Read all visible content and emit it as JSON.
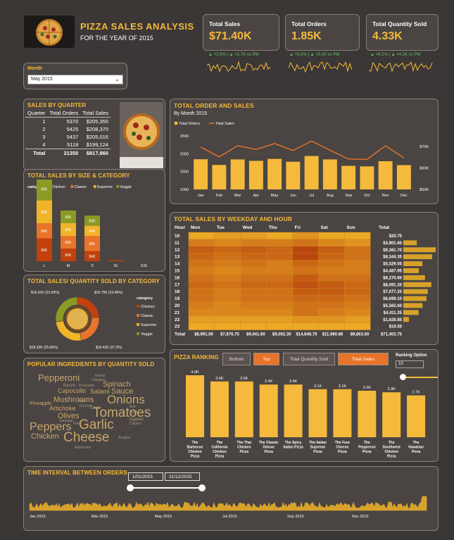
{
  "header": {
    "title": "PIZZA SALES ANALYSIS",
    "subtitle": "FOR THE YEAR OF 2015"
  },
  "kpis": [
    {
      "title": "Total Sales",
      "value": "$71.40K",
      "delta": "▲ +3.9% | ▲ +2.7K vs PM"
    },
    {
      "title": "Total Orders",
      "value": "1.85K",
      "delta": "▲ +3.0% | ▲ +0.1K vs PM"
    },
    {
      "title": "Total Quantity Sold",
      "value": "4.33K",
      "delta": "▲ +6.2% | ▲ +4.2K vs PM"
    }
  ],
  "filter": {
    "label": "Month",
    "value": "May 2015"
  },
  "quarter_table": {
    "title": "SALES BY QUARTER",
    "headers": [
      "Quarter",
      "Total Orders",
      "Total Sales"
    ],
    "rows": [
      [
        "1",
        "5370",
        "$205,350"
      ],
      [
        "2",
        "5425",
        "$208,370"
      ],
      [
        "3",
        "5437",
        "$205,016"
      ],
      [
        "4",
        "5118",
        "$199,124"
      ]
    ],
    "total": [
      "Total",
      "21350",
      "$817,860"
    ]
  },
  "order_sales": {
    "title": "TOTAL ORDER AND SALES",
    "subtitle": "By Month 2015",
    "legend": [
      "Total Orders",
      "Total Sales"
    ]
  },
  "size_cat": {
    "title": "TOTAL SALES BY SIZE & CATEGORY",
    "legend_title": "category",
    "legend": [
      "Chicken",
      "Classic",
      "Supreme",
      "Veggie"
    ]
  },
  "weekday": {
    "title": "TOTAL SALES BY WEEKDAY AND HOUR",
    "hour_label": "Hour",
    "total_label": "Total",
    "days": [
      "Mon",
      "Tue",
      "Wed",
      "Thu",
      "Fri",
      "Sat",
      "Sun"
    ],
    "hours": [
      "10",
      "11",
      "12",
      "13",
      "14",
      "15",
      "16",
      "17",
      "18",
      "19",
      "20",
      "21",
      "22",
      "23"
    ],
    "row_totals": [
      "$20.75",
      "$3,901.60",
      "$9,361.70",
      "$8,344.35",
      "$5,529.05",
      "$4,487.95",
      "$6,270.60",
      "$8,091.20",
      "$7,077.25",
      "$6,699.10",
      "$5,562.60",
      "$4,411.25",
      "$1,628.85",
      "$16.50"
    ],
    "total_row_label": "Total",
    "col_totals": [
      "$8,991.00",
      "$7,876.75",
      "$9,041.60",
      "$9,002.30",
      "$14,646.70",
      "$11,980.80",
      "$9,863.60",
      "$71,402.75"
    ]
  },
  "pie": {
    "title": "TOTAL SALES/ QUANTITY SOLD BY CATEGORY",
    "legend_title": "category",
    "legend": [
      "Chicken",
      "Classic",
      "Supreme",
      "Veggie"
    ],
    "labels": [
      "$16.91K (23.69%)",
      "$16.75K (23.46%)",
      "$18.32K (25.65%)",
      "$19.42K (27.2%)"
    ]
  },
  "ingredients": {
    "title": "POPULAR INGREDIENTS BY QUANTITY SOLD",
    "words": [
      "Pepperoni",
      "Spinach",
      "Capocollo",
      "Salami",
      "Sauce",
      "Mushrooms",
      "Onions",
      "Artichoke",
      "Tomatoes",
      "Olives",
      "Peppers",
      "Garlic",
      "Cheese",
      "Chicken",
      "Pineapple",
      "Bacon",
      "Thyme",
      "Oregano",
      "Prosciutto",
      "Corn",
      "Cilantro",
      "Eggplant",
      "Arugula",
      "Sausage",
      "Anchovies",
      "Zucchini",
      "Brie",
      "Feta",
      "Pesto",
      "Ham"
    ]
  },
  "ranking": {
    "title": "PIZZA RANKING",
    "buttons": [
      "Bottom",
      "Top",
      "Total Quantity Sold",
      "Total Sales"
    ],
    "option_label": "Ranking Option",
    "option_value": "10",
    "labels": [
      "4.0K",
      "3.6K",
      "3.6K",
      "3.4K",
      "3.4K",
      "3.1K",
      "3.1K",
      "3.0K",
      "2.9K",
      "2.7K"
    ],
    "names": [
      [
        "The",
        "Barbecue",
        "Chicken",
        "Pizza"
      ],
      [
        "The",
        "California",
        "Chicken",
        "Pizza"
      ],
      [
        "The Thai",
        "Chicken",
        "Pizza"
      ],
      [
        "The Classic",
        "Deluxe",
        "Pizza"
      ],
      [
        "The Spicy",
        "Italian Pizza"
      ],
      [
        "The Italian",
        "Supreme",
        "Pizza"
      ],
      [
        "The Four",
        "Cheese",
        "Pizza"
      ],
      [
        "The",
        "Pepperoni",
        "Pizza"
      ],
      [
        "The",
        "Southwest",
        "Chicken",
        "Pizza"
      ],
      [
        "The",
        "Hawaiian",
        "Pizza"
      ]
    ]
  },
  "timeline": {
    "title": "TIME INTERVAL BETWEEN ORDERS",
    "start": "1/01/2015",
    "end": "31/12/2015",
    "xticks": [
      "Jan 2015",
      "Mar 2015",
      "May 2015",
      "Jul 2015",
      "Sep 2015",
      "Nov 2015"
    ]
  },
  "colors": {
    "accent": "#f5b93b",
    "orange": "#e8742a",
    "chicken": "#c2410c",
    "classic": "#e8742a",
    "supreme": "#f0b429",
    "veggie": "#8a9a22"
  },
  "chart_data": [
    {
      "type": "bar",
      "title": "TOTAL ORDER AND SALES",
      "categories": [
        "Jan",
        "Feb",
        "Mar",
        "Apr",
        "May",
        "Jun",
        "Jul",
        "Aug",
        "Sep",
        "Oct",
        "Nov",
        "Dec"
      ],
      "series": [
        {
          "name": "Total Orders",
          "values": [
            1845,
            1685,
            1840,
            1800,
            1855,
            1775,
            1935,
            1840,
            1660,
            1645,
            1790,
            1680
          ]
        },
        {
          "name": "Total Sales",
          "values": [
            69.8,
            65.2,
            70.4,
            68.7,
            71.4,
            68.2,
            72.6,
            68.3,
            64.2,
            64.0,
            70.4,
            64.7
          ]
        }
      ],
      "ylim": [
        1000,
        2500
      ],
      "yticks": [
        1000,
        1500,
        2000,
        2500
      ],
      "y2ticks": [
        "$50K",
        "$60K",
        "$70K"
      ],
      "y2lim": [
        50,
        75
      ]
    },
    {
      "type": "bar",
      "title": "TOTAL SALES BY SIZE & CATEGORY",
      "categories": [
        "L",
        "M",
        "S",
        "XL",
        "XXL"
      ],
      "series": [
        {
          "name": "Chicken",
          "values": [
            9,
            5,
            4,
            0.4,
            0
          ]
        },
        {
          "name": "Classic",
          "values": [
            6,
            5,
            6,
            0,
            0
          ]
        },
        {
          "name": "Supreme",
          "values": [
            9,
            5,
            4,
            0,
            0
          ]
        },
        {
          "name": "Veggie",
          "values": [
            9,
            5,
            4,
            0,
            0
          ]
        }
      ],
      "data_labels": [
        [
          "$9K",
          "$6K",
          "$9K",
          "$9K"
        ],
        [
          "$5K",
          "$5K",
          "$5K",
          "$5K"
        ],
        [
          "$4K",
          "$6K",
          "$4K",
          "$4K"
        ]
      ]
    },
    {
      "type": "heatmap",
      "title": "TOTAL SALES BY WEEKDAY AND HOUR",
      "x": [
        "Mon",
        "Tue",
        "Wed",
        "Thu",
        "Fri",
        "Sat",
        "Sun"
      ],
      "y": [
        "10",
        "11",
        "12",
        "13",
        "14",
        "15",
        "16",
        "17",
        "18",
        "19",
        "20",
        "21",
        "22",
        "23"
      ],
      "values": [
        [
          1,
          2,
          2,
          1,
          3,
          1,
          1
        ],
        [
          5,
          4,
          5,
          5,
          6,
          4,
          3
        ],
        [
          8,
          7,
          8,
          7,
          10,
          8,
          6
        ],
        [
          7,
          6,
          7,
          7,
          10,
          7,
          6
        ],
        [
          6,
          5,
          6,
          5,
          7,
          6,
          5
        ],
        [
          5,
          4,
          5,
          5,
          6,
          5,
          5
        ],
        [
          6,
          5,
          6,
          6,
          8,
          6,
          6
        ],
        [
          7,
          6,
          7,
          7,
          9,
          8,
          7
        ],
        [
          6,
          5,
          6,
          6,
          8,
          8,
          7
        ],
        [
          6,
          5,
          6,
          6,
          7,
          7,
          6
        ],
        [
          5,
          4,
          5,
          5,
          6,
          6,
          5
        ],
        [
          4,
          4,
          4,
          4,
          6,
          5,
          4
        ],
        [
          2,
          2,
          2,
          2,
          3,
          3,
          2
        ],
        [
          1,
          1,
          1,
          1,
          1,
          1,
          1
        ]
      ],
      "row_totals": [
        20.75,
        3901.6,
        9361.7,
        8344.35,
        5529.05,
        4487.95,
        6270.6,
        8091.2,
        7077.25,
        6699.1,
        5562.6,
        4411.25,
        1628.85,
        16.5
      ]
    },
    {
      "type": "pie",
      "title": "TOTAL SALES/ QUANTITY SOLD BY CATEGORY",
      "categories": [
        "Chicken",
        "Classic",
        "Supreme",
        "Veggie"
      ],
      "values": [
        16.91,
        16.75,
        18.32,
        19.42
      ]
    },
    {
      "type": "bar",
      "title": "PIZZA RANKING",
      "categories": [
        "The Barbecue Chicken Pizza",
        "The California Chicken Pizza",
        "The Thai Chicken Pizza",
        "The Classic Deluxe Pizza",
        "The Spicy Italian Pizza",
        "The Italian Supreme Pizza",
        "The Four Cheese Pizza",
        "The Pepperoni Pizza",
        "The Southwest Chicken Pizza",
        "The Hawaiian Pizza"
      ],
      "values": [
        4.0,
        3.6,
        3.6,
        3.4,
        3.4,
        3.1,
        3.1,
        3.0,
        2.9,
        2.7
      ]
    }
  ]
}
